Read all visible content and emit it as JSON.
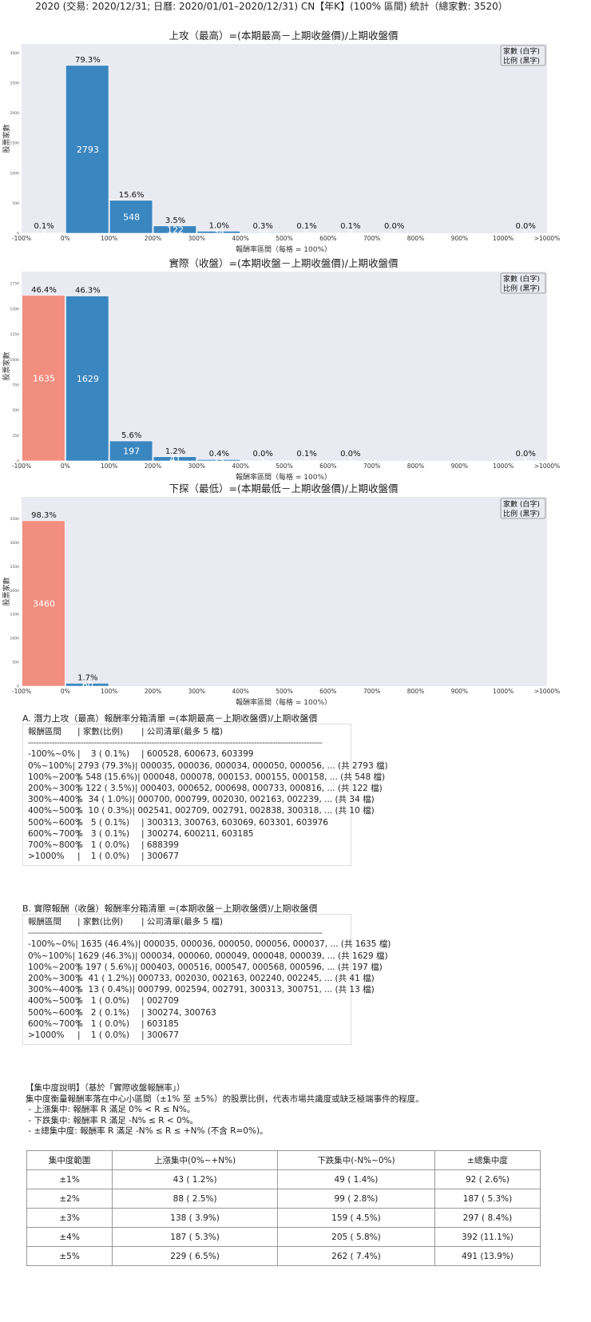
{
  "main_title": "2020 (交易: 2020/12/31; 日曆: 2020/01/01–2020/12/31) CN【年K】(100% 區間) 統計（總家數: 3520）",
  "colors": {
    "negative": "#f28e80",
    "positive": "#3a86c0",
    "plot_bg": "#eaeaf2"
  },
  "chart_data": [
    {
      "type": "bar",
      "title": "上攻（最高）=(本期最高－上期收盤價)/上期收盤價",
      "xlabel": "報酬率區間（每格 = 100%）",
      "ylabel": "股票家數",
      "legend": [
        "家數 (白字)",
        "比例 (黑字)"
      ],
      "legend_position": "top-right",
      "grid": false,
      "xticks": [
        "-100%",
        "0%",
        "100%",
        "200%",
        "300%",
        "400%",
        "500%",
        "600%",
        "700%",
        "800%",
        "900%",
        "1000%",
        ">1000%"
      ],
      "yticks": [
        0,
        500,
        1000,
        1500,
        2000,
        2500,
        3000
      ],
      "ylim": [
        0,
        3150
      ],
      "categories": [
        "-100%~0%",
        "0%~100%",
        "100%~200%",
        "200%~300%",
        "300%~400%",
        "400%~500%",
        "500%~600%",
        "600%~700%",
        "700%~800%",
        "800%~900%",
        "900%~1000%",
        ">1000%"
      ],
      "values": [
        3,
        2793,
        548,
        122,
        34,
        10,
        5,
        3,
        1,
        0,
        0,
        1
      ],
      "percent_labels": [
        "0.1%",
        "79.3%",
        "15.6%",
        "3.5%",
        "1.0%",
        "0.3%",
        "0.1%",
        "0.1%",
        "0.0%",
        "",
        "",
        "0.0%"
      ]
    },
    {
      "type": "bar",
      "title": "實際（收盤）=(本期收盤－上期收盤價)/上期收盤價",
      "xlabel": "報酬率區間（每格 = 100%）",
      "ylabel": "股票家數",
      "legend": [
        "家數 (白字)",
        "比例 (黑字)"
      ],
      "legend_position": "top-right",
      "grid": false,
      "xticks": [
        "-100%",
        "0%",
        "100%",
        "200%",
        "300%",
        "400%",
        "500%",
        "600%",
        "700%",
        "800%",
        "900%",
        "1000%",
        ">1000%"
      ],
      "yticks": [
        0,
        250,
        500,
        750,
        1000,
        1250,
        1500,
        1750
      ],
      "ylim": [
        0,
        1870
      ],
      "categories": [
        "-100%~0%",
        "0%~100%",
        "100%~200%",
        "200%~300%",
        "300%~400%",
        "400%~500%",
        "500%~600%",
        "600%~700%",
        "700%~800%",
        "800%~900%",
        "900%~1000%",
        ">1000%"
      ],
      "values": [
        1635,
        1629,
        197,
        41,
        13,
        1,
        2,
        1,
        0,
        0,
        0,
        1
      ],
      "percent_labels": [
        "46.4%",
        "46.3%",
        "5.6%",
        "1.2%",
        "0.4%",
        "0.0%",
        "0.1%",
        "0.0%",
        "",
        "",
        "",
        "0.0%"
      ]
    },
    {
      "type": "bar",
      "title": "下探（最低）=(本期最低－上期收盤價)/上期收盤價",
      "xlabel": "報酬率區間（每格 = 100%）",
      "ylabel": "股票家數",
      "legend": [
        "家數 (白字)",
        "比例 (黑字)"
      ],
      "legend_position": "top-right",
      "grid": false,
      "xticks": [
        "-100%",
        "0%",
        "100%",
        "200%",
        "300%",
        "400%",
        "500%",
        "600%",
        "700%",
        "800%",
        "900%",
        "1000%",
        ">1000%"
      ],
      "yticks": [
        0,
        500,
        1000,
        1500,
        2000,
        2500,
        3000,
        3500
      ],
      "ylim": [
        0,
        3960
      ],
      "categories": [
        "-100%~0%",
        "0%~100%",
        "100%~200%",
        "200%~300%",
        "300%~400%",
        "400%~500%",
        "500%~600%",
        "600%~700%",
        "700%~800%",
        "800%~900%",
        "900%~1000%",
        ">1000%"
      ],
      "values": [
        3460,
        60,
        0,
        0,
        0,
        0,
        0,
        0,
        0,
        0,
        0,
        0
      ],
      "percent_labels": [
        "98.3%",
        "1.7%",
        "",
        "",
        "",
        "",
        "",
        "",
        "",
        "",
        "",
        ""
      ]
    }
  ],
  "section_a": {
    "title": "A. 潛力上攻（最高）報酬率分箱清單 =(本期最高－上期收盤價)/上期收盤價",
    "header": [
      "報酬區間",
      "| 家數(比例)",
      "| 公司清單(最多 5 檔)"
    ],
    "separator": "----------------------------------------------------------------------------------------------------------------",
    "rows": [
      [
        "-100%~0%",
        "|    3 ( 0.1%)",
        "| 600528, 600673, 603399"
      ],
      [
        "0%~100%",
        "| 2793 (79.3%)",
        "| 000035, 000036, 000034, 000050, 000056, ... (共 2793 檔)"
      ],
      [
        "100%~200%",
        "|  548 (15.6%)",
        "| 000048, 000078, 000153, 000155, 000158, ... (共 548 檔)"
      ],
      [
        "200%~300%",
        "|  122 ( 3.5%)",
        "| 000403, 000652, 000698, 000733, 000816, ... (共 122 檔)"
      ],
      [
        "300%~400%",
        "|   34 ( 1.0%)",
        "| 000700, 000799, 002030, 002163, 002239, ... (共 34 檔)"
      ],
      [
        "400%~500%",
        "|   10 ( 0.3%)",
        "| 002541, 002709, 002791, 002838, 300318, ... (共 10 檔)"
      ],
      [
        "500%~600%",
        "|    5 ( 0.1%)",
        "| 300313, 300763, 603069, 603301, 603976"
      ],
      [
        "600%~700%",
        "|    3 ( 0.1%)",
        "| 300274, 600211, 603185"
      ],
      [
        "700%~800%",
        "|    1 ( 0.0%)",
        "| 688399"
      ],
      [
        ">1000%",
        "|    1 ( 0.0%)",
        "| 300677"
      ]
    ]
  },
  "section_b": {
    "title": "B. 實際報酬（收盤）報酬率分箱清單 =(本期收盤－上期收盤價)/上期收盤價",
    "header": [
      "報酬區間",
      "| 家數(比例)",
      "| 公司清單(最多 5 檔)"
    ],
    "separator": "----------------------------------------------------------------------------------------------------------------",
    "rows": [
      [
        "-100%~0%",
        "| 1635 (46.4%)",
        "| 000035, 000036, 000050, 000056, 000037, ... (共 1635 檔)"
      ],
      [
        "0%~100%",
        "| 1629 (46.3%)",
        "| 000034, 000060, 000049, 000048, 000039, ... (共 1629 檔)"
      ],
      [
        "100%~200%",
        "|  197 ( 5.6%)",
        "| 000403, 000516, 000547, 000568, 000596, ... (共 197 檔)"
      ],
      [
        "200%~300%",
        "|   41 ( 1.2%)",
        "| 000733, 002030, 002163, 002240, 002245, ... (共 41 檔)"
      ],
      [
        "300%~400%",
        "|   13 ( 0.4%)",
        "| 000799, 002594, 002791, 300313, 300751, ... (共 13 檔)"
      ],
      [
        "400%~500%",
        "|    1 ( 0.0%)",
        "| 002709"
      ],
      [
        "500%~600%",
        "|    2 ( 0.1%)",
        "| 300274, 300763"
      ],
      [
        "600%~700%",
        "|    1 ( 0.0%)",
        "| 603185"
      ],
      [
        ">1000%",
        "|    1 ( 0.0%)",
        "| 300677"
      ]
    ]
  },
  "concentration": {
    "notes": [
      "【集中度說明】（基於「實際收盤報酬率」）",
      "集中度衡量報酬率落在中心小區間（±1% 至 ±5%）的股票比例，代表市場共識度或缺乏極端事件的程度。",
      " - 上漲集中: 報酬率 R 滿足 0% < R ≤ N%。",
      " - 下跌集中: 報酬率 R 滿足 -N% ≤ R < 0%。",
      " - ±總集中度: 報酬率 R 滿足 -N% ≤ R ≤ +N% (不含 R=0%)。"
    ],
    "headers": [
      "集中度範圍",
      "上漲集中(0%~+N%)",
      "下跌集中(-N%~0%)",
      "±總集中度"
    ],
    "rows": [
      [
        "±1%",
        "43 ( 1.2%)",
        "49 ( 1.4%)",
        "92 ( 2.6%)"
      ],
      [
        "±2%",
        "88 ( 2.5%)",
        "99 ( 2.8%)",
        "187 ( 5.3%)"
      ],
      [
        "±3%",
        "138 ( 3.9%)",
        "159 ( 4.5%)",
        "297 ( 8.4%)"
      ],
      [
        "±4%",
        "187 ( 5.3%)",
        "205 ( 5.8%)",
        "392 (11.1%)"
      ],
      [
        "±5%",
        "229 ( 6.5%)",
        "262 ( 7.4%)",
        "491 (13.9%)"
      ]
    ]
  }
}
